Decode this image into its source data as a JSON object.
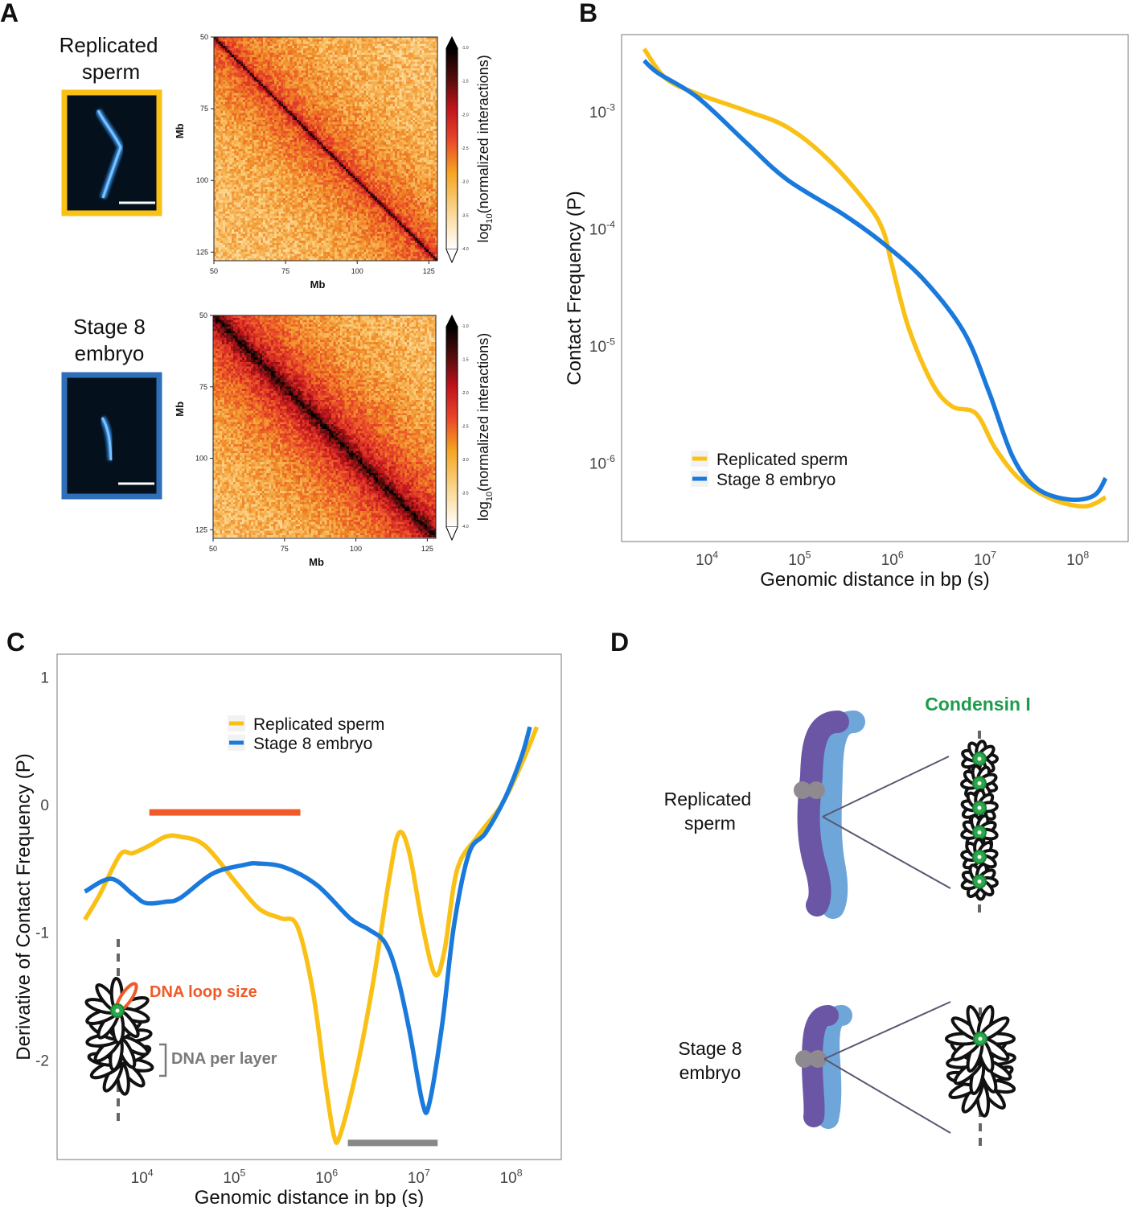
{
  "panel_letters": {
    "a": "A",
    "b": "B",
    "c": "C",
    "d": "D"
  },
  "panel_a": {
    "samples": [
      {
        "label_line1": "Replicated",
        "label_line2": "sperm",
        "frame_color": "#F9C015"
      },
      {
        "label_line1": "Stage 8",
        "label_line2": "embryo",
        "frame_color": "#2E6FB7"
      }
    ],
    "colors": {
      "microscopy_background": "#04101C",
      "chromosome_stain": "#3EA0FF",
      "scale_bar": "#FFFFFF"
    }
  },
  "chart_data": [
    {
      "id": "hic-replicated-sperm",
      "type": "heatmap",
      "xlabel": "Mb",
      "ylabel": "Mb",
      "xticks": [
        50,
        75,
        100,
        125
      ],
      "yticks": [
        50,
        75,
        100,
        125
      ],
      "xlim": [
        50,
        128
      ],
      "ylim": [
        50,
        128
      ],
      "colorbar": {
        "label_main": "log",
        "label_sub": "10",
        "label_rest": "(normalized interactions)",
        "ticks": [
          "-1.0",
          "-1.5",
          "-2.0",
          "-2.5",
          "-3.0",
          "-3.5",
          "-4.0"
        ],
        "extend": "both"
      }
    },
    {
      "id": "hic-stage8-embryo",
      "type": "heatmap",
      "xlabel": "Mb",
      "ylabel": "Mb",
      "xticks": [
        50,
        75,
        100,
        125
      ],
      "yticks": [
        50,
        75,
        100,
        125
      ],
      "xlim": [
        50,
        128
      ],
      "ylim": [
        50,
        128
      ],
      "colorbar": {
        "label_main": "log",
        "label_sub": "10",
        "label_rest": "(normalized interactions)",
        "ticks": [
          "-1.0",
          "-1.5",
          "-2.0",
          "-2.5",
          "-3.0",
          "-3.5",
          "-4.0"
        ],
        "extend": "both"
      }
    },
    {
      "id": "contact-frequency",
      "type": "line",
      "xlabel": "Genomic distance in bp (s)",
      "ylabel": "Contact Frequency (P)",
      "xscale": "log",
      "yscale": "log",
      "xlim": [
        1200.0,
        350000000.0
      ],
      "ylim": [
        2.1e-07,
        0.0045
      ],
      "xticks": [
        {
          "base": "10",
          "exp": "4",
          "value": 10000.0
        },
        {
          "base": "10",
          "exp": "5",
          "value": 100000.0
        },
        {
          "base": "10",
          "exp": "6",
          "value": 1000000.0
        },
        {
          "base": "10",
          "exp": "7",
          "value": 10000000.0
        },
        {
          "base": "10",
          "exp": "8",
          "value": 100000000.0
        }
      ],
      "yticks": [
        {
          "base": "10",
          "exp": "-3",
          "value": 0.001
        },
        {
          "base": "10",
          "exp": "-4",
          "value": 0.0001
        },
        {
          "base": "10",
          "exp": "-5",
          "value": 1e-05
        },
        {
          "base": "10",
          "exp": "-6",
          "value": 1e-06
        }
      ],
      "grid": false,
      "legend": "bottom-left",
      "series": [
        {
          "name": "Replicated sperm",
          "color": "#F9C015",
          "x": [
            2100.0,
            3600.0,
            8000.0,
            27000.0,
            73000.0,
            200000.0,
            540000.0,
            800000.0,
            980000.0,
            1500000.0,
            2700000.0,
            4400000.0,
            8000000.0,
            13000000.0,
            24000000.0,
            54000000.0,
            120000000.0,
            200000000.0
          ],
          "y": [
            0.0034,
            0.0019,
            0.0014,
            0.001,
            0.00073,
            0.00039,
            0.00016,
            9.4e-05,
            5e-05,
            1.4e-05,
            4.7e-06,
            3e-06,
            2.6e-06,
            1.3e-06,
            7.1e-07,
            4.8e-07,
            4.2e-07,
            5e-07
          ]
        },
        {
          "name": "Stage 8 embryo",
          "color": "#1A7ADB",
          "x": [
            2100.0,
            3000.0,
            8000.0,
            27000.0,
            73000.0,
            300000.0,
            800000.0,
            2200000.0,
            5900000.0,
            11000000.0,
            20000000.0,
            36000000.0,
            80000000.0,
            150000000.0,
            200000000.0
          ],
          "y": [
            0.0027,
            0.0021,
            0.0013,
            0.00053,
            0.00026,
            0.00013,
            7.4e-05,
            3.6e-05,
            1.3e-05,
            4e-06,
            1.1e-06,
            6e-07,
            4.8e-07,
            5.2e-07,
            7.3e-07
          ]
        }
      ]
    },
    {
      "id": "contact-frequency-derivative",
      "type": "line",
      "xlabel": "Genomic distance in bp (s)",
      "ylabel": "Derivative of Contact Frequency (P)",
      "xscale": "log",
      "yscale": "linear",
      "xlim": [
        1200.0,
        350000000.0
      ],
      "ylim": [
        -2.78,
        1.18
      ],
      "xticks": [
        {
          "base": "10",
          "exp": "4",
          "value": 10000.0
        },
        {
          "base": "10",
          "exp": "5",
          "value": 100000.0
        },
        {
          "base": "10",
          "exp": "6",
          "value": 1000000.0
        },
        {
          "base": "10",
          "exp": "7",
          "value": 10000000.0
        },
        {
          "base": "10",
          "exp": "8",
          "value": 100000000.0
        }
      ],
      "yticks": [
        {
          "label": "1",
          "value": 1
        },
        {
          "label": "0",
          "value": 0
        },
        {
          "label": "-1",
          "value": -1
        },
        {
          "label": "-2",
          "value": -2
        }
      ],
      "grid": false,
      "legend": "top-center",
      "series": [
        {
          "name": "Replicated sperm",
          "color": "#F9C015",
          "x": [
            2400.0,
            3500.0,
            5800.0,
            7900.0,
            12000.0,
            18000.0,
            26000.0,
            48000.0,
            110000.0,
            190000.0,
            320000.0,
            480000.0,
            710000.0,
            960000.0,
            1200000.0,
            1400000.0,
            2100000.0,
            3200000.0,
            4800000.0,
            6100000.0,
            7900000.0,
            11000000.0,
            15000000.0,
            19000000.0,
            26000000.0,
            43000000.0,
            79000000.0,
            130000000.0,
            190000000.0
          ],
          "y": [
            -0.9,
            -0.7,
            -0.39,
            -0.38,
            -0.32,
            -0.25,
            -0.25,
            -0.32,
            -0.63,
            -0.82,
            -0.89,
            -0.95,
            -1.46,
            -2.15,
            -2.59,
            -2.59,
            -2.09,
            -1.39,
            -0.57,
            -0.22,
            -0.38,
            -0.95,
            -1.33,
            -1.14,
            -0.51,
            -0.25,
            0.0,
            0.32,
            0.61
          ]
        },
        {
          "name": "Stage 8 embryo",
          "color": "#1A7ADB",
          "x": [
            2400.0,
            4600.0,
            7900.0,
            11000.0,
            18000.0,
            26000.0,
            58000.0,
            130000.0,
            180000.0,
            350000.0,
            790000.0,
            1800000.0,
            2900000.0,
            4300000.0,
            5800000.0,
            7900000.0,
            11000000.0,
            13000000.0,
            18000000.0,
            24000000.0,
            35000000.0,
            53000000.0,
            87000000.0,
            130000000.0,
            160000000.0
          ],
          "y": [
            -0.68,
            -0.58,
            -0.7,
            -0.77,
            -0.76,
            -0.73,
            -0.54,
            -0.47,
            -0.46,
            -0.49,
            -0.63,
            -0.89,
            -0.98,
            -1.08,
            -1.33,
            -1.77,
            -2.34,
            -2.34,
            -1.71,
            -0.95,
            -0.38,
            -0.22,
            0.06,
            0.38,
            0.61
          ]
        }
      ],
      "annotations": [
        {
          "type": "range-bar",
          "color": "#F05A28",
          "x": [
            12000.0,
            520000.0
          ],
          "y": -0.06
        },
        {
          "type": "range-bar",
          "color": "#888888",
          "x": [
            1700000.0,
            16000000.0
          ],
          "y": -2.65
        }
      ],
      "inset": {
        "loop_label": "DNA loop size",
        "layer_label": "DNA per layer",
        "loop_color": "#F05A28",
        "layer_color": "#7A7A7A",
        "condensin_color": "#2BA84A"
      }
    }
  ],
  "panel_d": {
    "condensin_label": "Condensin I",
    "condensin_color": "#1E9C4A",
    "rows": [
      {
        "label_line1": "Replicated",
        "label_line2": "sperm"
      },
      {
        "label_line1": "Stage 8",
        "label_line2": "embryo"
      }
    ],
    "colors": {
      "chromatid_1": "#6B55A5",
      "chromatid_2": "#6EA6DA",
      "centromere": "#8E8A90",
      "zoom_lines": "#5B5670"
    }
  }
}
